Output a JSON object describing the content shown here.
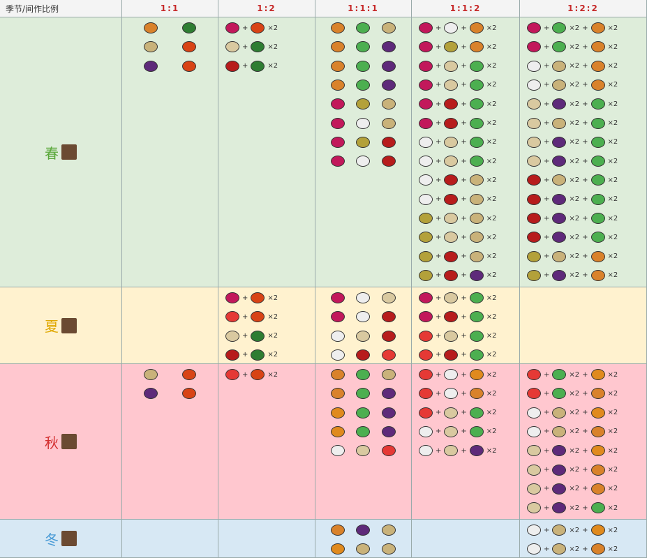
{
  "table": {
    "header": [
      "季节/间作比例",
      "1:1",
      "1:2",
      "1:1:1",
      "1:1:2",
      "1:2:2"
    ],
    "rows": [
      {
        "season": "春",
        "cells": [
          {
            "lines": [
              [],
              [],
              []
            ]
          },
          {
            "lines": [
              [
                "+",
                "×2"
              ],
              [
                "+",
                "×2"
              ],
              [
                "+",
                "×2"
              ]
            ]
          },
          {
            "lines": [
              [],
              [],
              [],
              [],
              [],
              [],
              [],
              []
            ]
          },
          {
            "lines": [
              [
                "+",
                "+",
                "×2"
              ],
              [
                "+",
                "+",
                "×2"
              ],
              [
                "+",
                "+",
                "×2"
              ],
              [
                "+",
                "+",
                "×2"
              ],
              [
                "+",
                "+",
                "×2"
              ],
              [
                "+",
                "+",
                "×2"
              ],
              [
                "+",
                "+",
                "×2"
              ],
              [
                "+",
                "+",
                "×2"
              ],
              [
                "+",
                "+",
                "×2"
              ],
              [
                "+",
                "+",
                "×2"
              ],
              [
                "+",
                "+",
                "×2"
              ],
              [
                "+",
                "+",
                "×2"
              ],
              [
                "+",
                "+",
                "×2"
              ],
              [
                "+",
                "+",
                "×2"
              ]
            ]
          },
          {
            "lines": [
              [
                "+",
                "×2",
                "+",
                "×2"
              ],
              [
                "+",
                "×2",
                "+",
                "×2"
              ],
              [
                "+",
                "×2",
                "+",
                "×2"
              ],
              [
                "+",
                "×2",
                "+",
                "×2"
              ],
              [
                "+",
                "×2",
                "+",
                "×2"
              ],
              [
                "+",
                "×2",
                "+",
                "×2"
              ],
              [
                "+",
                "×2",
                "+",
                "×2"
              ],
              [
                "+",
                "×2",
                "+",
                "×2"
              ],
              [
                "+",
                "×2",
                "+",
                "×2"
              ],
              [
                "+",
                "×2",
                "+",
                "×2"
              ],
              [
                "+",
                "×2",
                "+",
                "×2"
              ],
              [
                "+",
                "×2",
                "+",
                "×2"
              ],
              [
                "+",
                "×2",
                "+",
                "×2"
              ],
              [
                "+",
                "×2",
                "+",
                "×2"
              ]
            ]
          }
        ]
      },
      {
        "season": "夏",
        "cells": [
          {
            "lines": []
          },
          {
            "lines": [
              [
                "+",
                "×2"
              ],
              [
                "+",
                "×2"
              ],
              [
                "+",
                "×2"
              ],
              [
                "+",
                "×2"
              ]
            ]
          },
          {
            "lines": [
              [],
              [],
              [],
              []
            ]
          },
          {
            "lines": [
              [
                "+",
                "+",
                "×2"
              ],
              [
                "+",
                "+",
                "×2"
              ],
              [
                "+",
                "+",
                "×2"
              ],
              [
                "+",
                "+",
                "×2"
              ]
            ]
          },
          {
            "lines": []
          }
        ]
      },
      {
        "season": "秋",
        "cells": [
          {
            "lines": [
              [],
              []
            ]
          },
          {
            "lines": [
              [
                "+",
                "×2"
              ]
            ]
          },
          {
            "lines": [
              [],
              [],
              [],
              [],
              []
            ]
          },
          {
            "lines": [
              [
                "+",
                "+",
                "×2"
              ],
              [
                "+",
                "+",
                "×2"
              ],
              [
                "+",
                "+",
                "×2"
              ],
              [
                "+",
                "+",
                "×2"
              ],
              [
                "+",
                "+",
                "×2"
              ]
            ]
          },
          {
            "lines": [
              [
                "+",
                "×2",
                "+",
                "×2"
              ],
              [
                "+",
                "×2",
                "+",
                "×2"
              ],
              [
                "+",
                "×2",
                "+",
                "×2"
              ],
              [
                "+",
                "×2",
                "+",
                "×2"
              ],
              [
                "+",
                "×2",
                "+",
                "×2"
              ],
              [
                "+",
                "×2",
                "+",
                "×2"
              ],
              [
                "+",
                "×2",
                "+",
                "×2"
              ],
              [
                "+",
                "×2",
                "+",
                "×2"
              ]
            ]
          }
        ]
      },
      {
        "season": "冬",
        "cells": [
          {
            "lines": []
          },
          {
            "lines": []
          },
          {
            "lines": [
              [],
              []
            ]
          },
          {
            "lines": []
          },
          {
            "lines": [
              [
                "+",
                "×2",
                "+",
                "×2"
              ],
              [
                "+",
                "×2",
                "+",
                "×2"
              ]
            ]
          }
        ]
      }
    ]
  }
}
